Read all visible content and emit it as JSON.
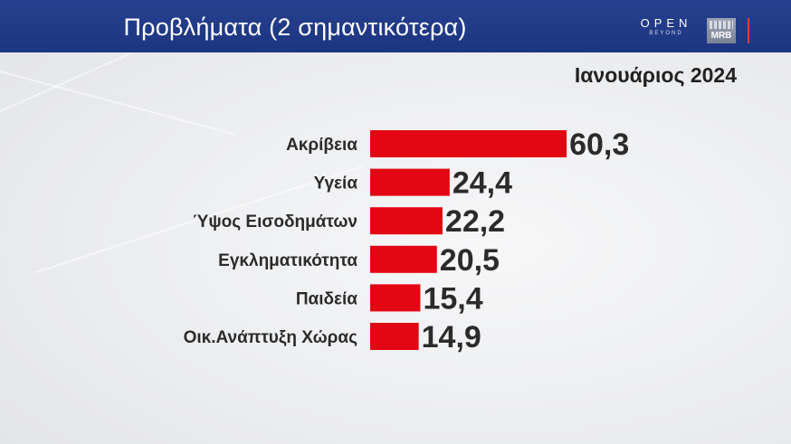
{
  "header": {
    "title": "Προβλήματα (2 σημαντικότερα)",
    "logos": {
      "open_main": "OPEN",
      "open_sub": "BEYOND",
      "mrb": "MRB"
    },
    "accent_color": "#e53b3b"
  },
  "subtitle": "Ιανουάριος 2024",
  "chart_data": {
    "type": "bar",
    "orientation": "horizontal",
    "categories": [
      "Ακρίβεια",
      "Υγεία",
      "Ύψος Εισοδημάτων",
      "Εγκληματικότητα",
      "Παιδεία",
      "Οικ.Ανάπτυξη Χώρας"
    ],
    "values": [
      60.3,
      24.4,
      22.2,
      20.5,
      15.4,
      14.9
    ],
    "value_labels": [
      "60,3",
      "24,4",
      "22,2",
      "20,5",
      "15,4",
      "14,9"
    ],
    "xlim": [
      0,
      70
    ],
    "bar_color": "#e30613",
    "grid": false,
    "legend": "none"
  }
}
